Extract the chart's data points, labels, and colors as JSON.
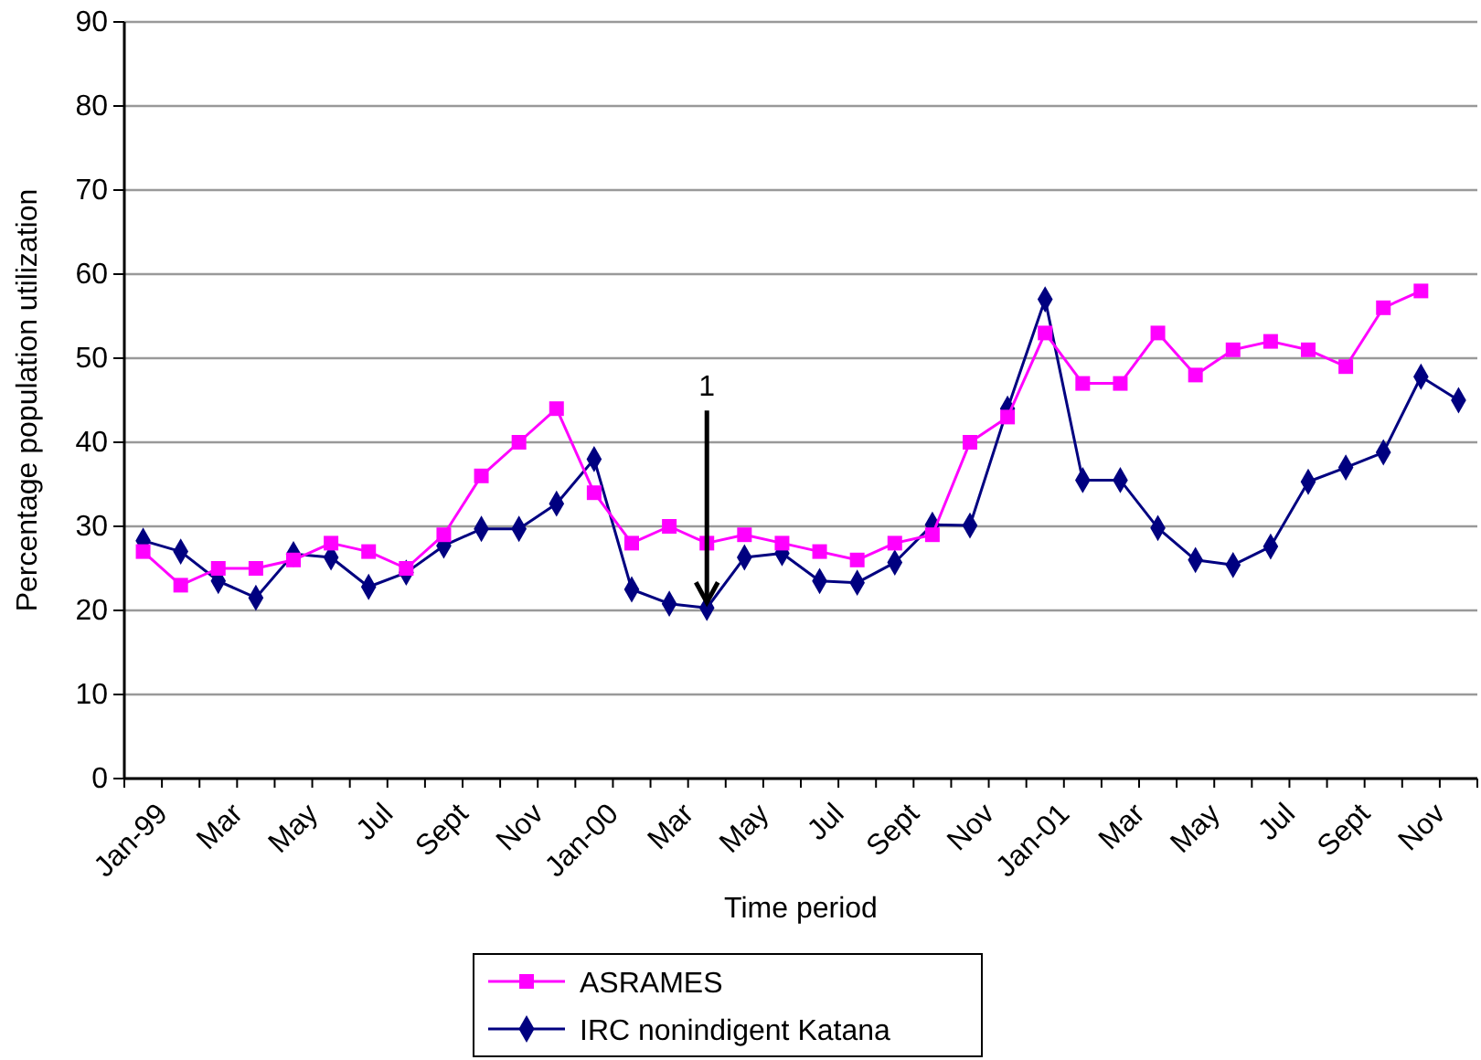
{
  "chart_data": {
    "type": "line",
    "xlabel": "Time period",
    "ylabel": "Percentage population utilization",
    "categories": [
      "Jan-99",
      null,
      "Mar",
      null,
      "May",
      null,
      "Jul",
      null,
      "Sept",
      null,
      "Nov",
      null,
      "Jan-00",
      null,
      "Mar",
      null,
      "May",
      null,
      "Jul",
      null,
      "Sept",
      null,
      "Nov",
      null,
      "Jan-01",
      null,
      "Mar",
      null,
      "May",
      null,
      "Jul",
      null,
      "Sept",
      null,
      "Nov",
      null
    ],
    "series": [
      {
        "name": "ASRAMES",
        "color": "#ff00ff",
        "marker": "square",
        "values": [
          27,
          23,
          25,
          25,
          26,
          28,
          27,
          25,
          29,
          36,
          40,
          44,
          34,
          28,
          30,
          28,
          29,
          28,
          27,
          26,
          28,
          29,
          40,
          43,
          53,
          47,
          47,
          53,
          48,
          51,
          52,
          51,
          49,
          56,
          58,
          null
        ]
      },
      {
        "name": "IRC nonindigent Katana",
        "color": "#000080",
        "marker": "diamond",
        "values": [
          28.3,
          27,
          23.5,
          21.5,
          26.7,
          26.3,
          22.8,
          24.5,
          27.7,
          29.7,
          29.7,
          32.7,
          38,
          22.5,
          20.8,
          20.3,
          26.3,
          26.8,
          23.5,
          23.3,
          25.7,
          30.2,
          30.1,
          44,
          57,
          35.5,
          35.5,
          29.8,
          26,
          25.4,
          27.6,
          35.3,
          37,
          38.8,
          47.8,
          45
        ]
      }
    ],
    "ylim": [
      0,
      90
    ],
    "yticks": [
      0,
      10,
      20,
      30,
      40,
      50,
      60,
      70,
      80,
      90
    ],
    "grid": "y",
    "legend": "bottom",
    "annotations": [
      {
        "text": "1",
        "y": 20.3
      }
    ]
  }
}
